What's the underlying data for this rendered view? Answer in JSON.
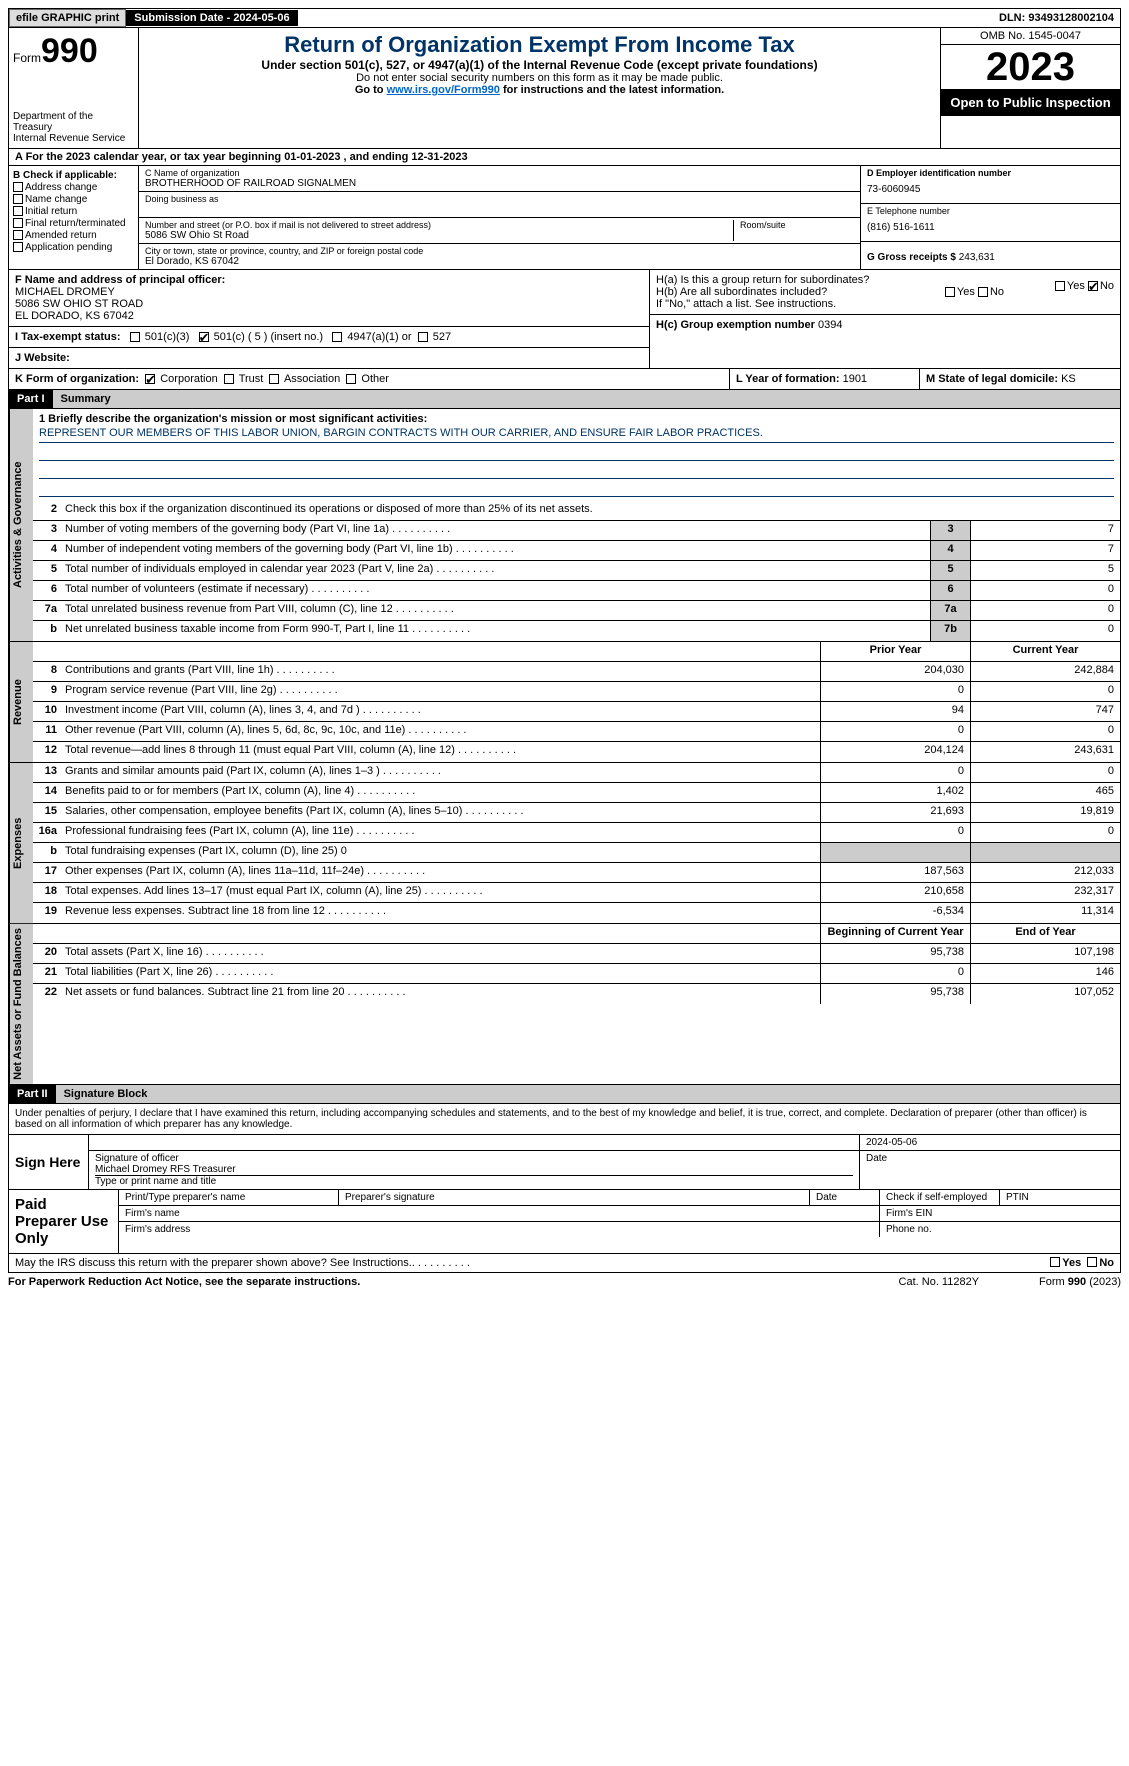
{
  "topbar": {
    "efile": "efile GRAPHIC print",
    "submission": "Submission Date - 2024-05-06",
    "dln": "DLN: 93493128002104"
  },
  "header": {
    "form_word": "Form",
    "form_num": "990",
    "dept": "Department of the Treasury\nInternal Revenue Service",
    "title": "Return of Organization Exempt From Income Tax",
    "sub1": "Under section 501(c), 527, or 4947(a)(1) of the Internal Revenue Code (except private foundations)",
    "sub2": "Do not enter social security numbers on this form as it may be made public.",
    "sub3": "Go to ",
    "link": "www.irs.gov/Form990",
    "sub3b": " for instructions and the latest information.",
    "omb": "OMB No. 1545-0047",
    "year": "2023",
    "open": "Open to Public Inspection"
  },
  "rowA": "A For the 2023 calendar year, or tax year beginning 01-01-2023    , and ending 12-31-2023",
  "B": {
    "hdr": "B Check if applicable:",
    "items": [
      "Address change",
      "Name change",
      "Initial return",
      "Final return/terminated",
      "Amended return",
      "Application pending"
    ]
  },
  "C": {
    "name_lbl": "C Name of organization",
    "name": "BROTHERHOOD OF RAILROAD SIGNALMEN",
    "dba_lbl": "Doing business as",
    "addr_lbl": "Number and street (or P.O. box if mail is not delivered to street address)",
    "addr": "5086 SW Ohio St Road",
    "room_lbl": "Room/suite",
    "city_lbl": "City or town, state or province, country, and ZIP or foreign postal code",
    "city": "El Dorado, KS  67042"
  },
  "D": {
    "lbl": "D Employer identification number",
    "val": "73-6060945"
  },
  "E": {
    "lbl": "E Telephone number",
    "val": "(816) 516-1611"
  },
  "G": {
    "lbl": "G Gross receipts $",
    "val": "243,631"
  },
  "F": {
    "lbl": "F  Name and address of principal officer:",
    "name": "MICHAEL DROMEY",
    "addr1": "5086 SW OHIO ST ROAD",
    "addr2": "EL DORADO, KS  67042"
  },
  "H": {
    "a": "H(a)  Is this a group return for subordinates?",
    "b": "H(b)  Are all subordinates included?",
    "b2": "If \"No,\" attach a list. See instructions.",
    "c": "H(c)  Group exemption number   ",
    "c_val": "0394",
    "yes": "Yes",
    "no": "No"
  },
  "I": {
    "lbl": "I    Tax-exempt status:",
    "opts": [
      "501(c)(3)",
      "501(c) ( 5 ) (insert no.)",
      "4947(a)(1) or",
      "527"
    ]
  },
  "J": {
    "lbl": "J    Website:"
  },
  "K": {
    "lbl": "K Form of organization:",
    "opts": [
      "Corporation",
      "Trust",
      "Association",
      "Other"
    ]
  },
  "L": {
    "lbl": "L Year of formation:",
    "val": "1901"
  },
  "M": {
    "lbl": "M State of legal domicile:",
    "val": "KS"
  },
  "partI": {
    "num": "Part I",
    "title": "Summary"
  },
  "vtabs": {
    "act": "Activities & Governance",
    "rev": "Revenue",
    "exp": "Expenses",
    "net": "Net Assets or Fund Balances"
  },
  "mission": {
    "lbl": "1   Briefly describe the organization's mission or most significant activities:",
    "txt": "REPRESENT OUR MEMBERS OF THIS LABOR UNION, BARGIN CONTRACTS WITH OUR CARRIER, AND ENSURE FAIR LABOR PRACTICES."
  },
  "lines_gov": [
    {
      "n": "2",
      "t": "Check this box      if the organization discontinued its operations or disposed of more than 25% of its net assets."
    },
    {
      "n": "3",
      "t": "Number of voting members of the governing body (Part VI, line 1a)",
      "box": "3",
      "v": "7"
    },
    {
      "n": "4",
      "t": "Number of independent voting members of the governing body (Part VI, line 1b)",
      "box": "4",
      "v": "7"
    },
    {
      "n": "5",
      "t": "Total number of individuals employed in calendar year 2023 (Part V, line 2a)",
      "box": "5",
      "v": "5"
    },
    {
      "n": "6",
      "t": "Total number of volunteers (estimate if necessary)",
      "box": "6",
      "v": "0"
    },
    {
      "n": "7a",
      "t": "Total unrelated business revenue from Part VIII, column (C), line 12",
      "box": "7a",
      "v": "0"
    },
    {
      "n": "b",
      "t": "Net unrelated business taxable income from Form 990-T, Part I, line 11",
      "box": "7b",
      "v": "0"
    }
  ],
  "col_hdrs": {
    "prior": "Prior Year",
    "curr": "Current Year",
    "boy": "Beginning of Current Year",
    "eoy": "End of Year"
  },
  "lines_rev": [
    {
      "n": "8",
      "t": "Contributions and grants (Part VIII, line 1h)",
      "p": "204,030",
      "c": "242,884"
    },
    {
      "n": "9",
      "t": "Program service revenue (Part VIII, line 2g)",
      "p": "0",
      "c": "0"
    },
    {
      "n": "10",
      "t": "Investment income (Part VIII, column (A), lines 3, 4, and 7d )",
      "p": "94",
      "c": "747"
    },
    {
      "n": "11",
      "t": "Other revenue (Part VIII, column (A), lines 5, 6d, 8c, 9c, 10c, and 11e)",
      "p": "0",
      "c": "0"
    },
    {
      "n": "12",
      "t": "Total revenue—add lines 8 through 11 (must equal Part VIII, column (A), line 12)",
      "p": "204,124",
      "c": "243,631"
    }
  ],
  "lines_exp": [
    {
      "n": "13",
      "t": "Grants and similar amounts paid (Part IX, column (A), lines 1–3 )",
      "p": "0",
      "c": "0"
    },
    {
      "n": "14",
      "t": "Benefits paid to or for members (Part IX, column (A), line 4)",
      "p": "1,402",
      "c": "465"
    },
    {
      "n": "15",
      "t": "Salaries, other compensation, employee benefits (Part IX, column (A), lines 5–10)",
      "p": "21,693",
      "c": "19,819"
    },
    {
      "n": "16a",
      "t": "Professional fundraising fees (Part IX, column (A), line 11e)",
      "p": "0",
      "c": "0"
    },
    {
      "n": "b",
      "t": "Total fundraising expenses (Part IX, column (D), line 25) 0",
      "shade": true
    },
    {
      "n": "17",
      "t": "Other expenses (Part IX, column (A), lines 11a–11d, 11f–24e)",
      "p": "187,563",
      "c": "212,033"
    },
    {
      "n": "18",
      "t": "Total expenses. Add lines 13–17 (must equal Part IX, column (A), line 25)",
      "p": "210,658",
      "c": "232,317"
    },
    {
      "n": "19",
      "t": "Revenue less expenses. Subtract line 18 from line 12",
      "p": "-6,534",
      "c": "11,314"
    }
  ],
  "lines_net": [
    {
      "n": "20",
      "t": "Total assets (Part X, line 16)",
      "p": "95,738",
      "c": "107,198"
    },
    {
      "n": "21",
      "t": "Total liabilities (Part X, line 26)",
      "p": "0",
      "c": "146"
    },
    {
      "n": "22",
      "t": "Net assets or fund balances. Subtract line 21 from line 20",
      "p": "95,738",
      "c": "107,052"
    }
  ],
  "partII": {
    "num": "Part II",
    "title": "Signature Block"
  },
  "sig": {
    "disclaim": "Under penalties of perjury, I declare that I have examined this return, including accompanying schedules and statements, and to the best of my knowledge and belief, it is true, correct, and complete. Declaration of preparer (other than officer) is based on all information of which preparer has any knowledge.",
    "sign_here": "Sign Here",
    "sig_officer": "Signature of officer",
    "officer_name": "Michael Dromey  RFS Treasurer",
    "type_name": "Type or print name and title",
    "date": "Date",
    "date_val": "2024-05-06",
    "paid": "Paid Preparer Use Only",
    "prep_name": "Print/Type preparer's name",
    "prep_sig": "Preparer's signature",
    "prep_date": "Date",
    "self_emp": "Check        if self-employed",
    "ptin": "PTIN",
    "firm_name": "Firm's name",
    "firm_ein": "Firm's EIN",
    "firm_addr": "Firm's address",
    "phone": "Phone no."
  },
  "footer": {
    "discuss": "May the IRS discuss this return with the preparer shown above? See Instructions.",
    "yes": "Yes",
    "no": "No",
    "pra": "For Paperwork Reduction Act Notice, see the separate instructions.",
    "cat": "Cat. No. 11282Y",
    "form": "Form 990 (2023)"
  }
}
